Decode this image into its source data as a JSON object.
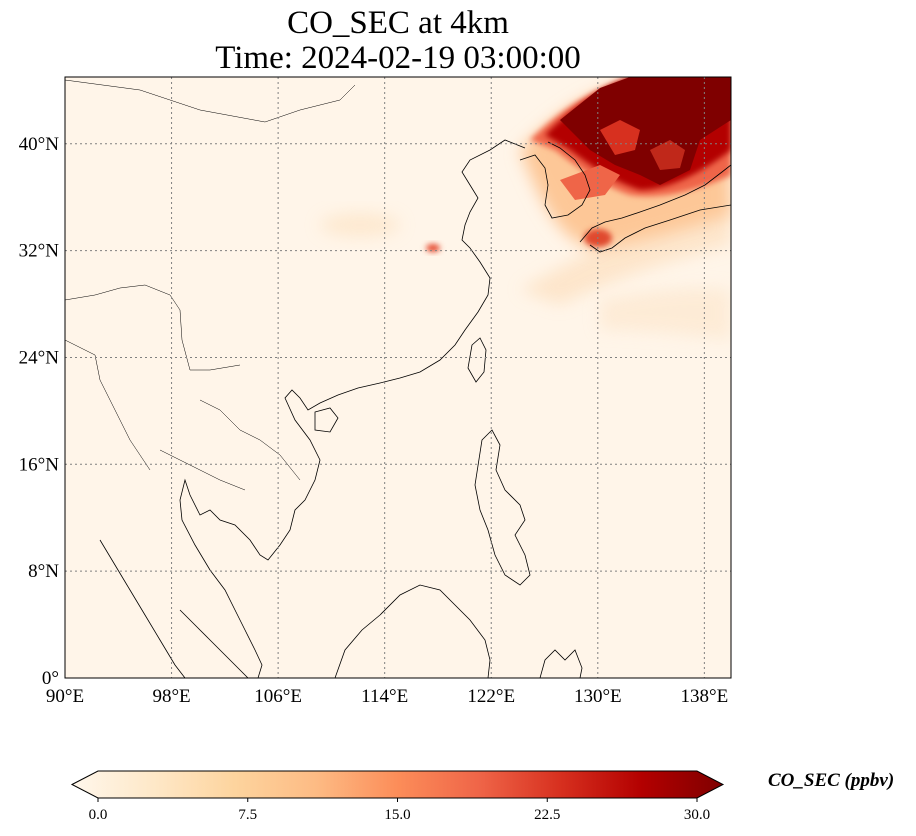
{
  "title": {
    "line1": "CO_SEC at 4km",
    "line2": "Time: 2024-02-19 03:00:00"
  },
  "map": {
    "lon_range": [
      90,
      140
    ],
    "lat_range": [
      0,
      45
    ],
    "lon_ticks": [
      90,
      98,
      106,
      114,
      122,
      130,
      138
    ],
    "lat_ticks": [
      0,
      8,
      16,
      24,
      32,
      40
    ],
    "lon_tick_labels": [
      "90°E",
      "98°E",
      "106°E",
      "114°E",
      "122°E",
      "130°E",
      "138°E"
    ],
    "lat_tick_labels": [
      "0°",
      "8°N",
      "16°N",
      "24°N",
      "32°N",
      "40°N"
    ],
    "gridlines": "dotted",
    "variable": "CO_SEC",
    "level": "4km",
    "colormap": "OrRd",
    "background_color": "#fff5e9",
    "coastline_color": "#000000"
  },
  "colorbar": {
    "label": "CO_SEC (ppbv)",
    "range": [
      0.0,
      30.0
    ],
    "ticks": [
      0.0,
      7.5,
      15.0,
      22.5,
      30.0
    ],
    "tick_labels": [
      "0.0",
      "7.5",
      "15.0",
      "22.5",
      "30.0"
    ],
    "extend": "both",
    "colors": [
      "#fff7ec",
      "#fee8c8",
      "#fdd49e",
      "#fdbb84",
      "#fc8d59",
      "#ef6548",
      "#d7301f",
      "#b30000",
      "#7f0000"
    ]
  },
  "features": [
    {
      "name": "plume-ne-asia",
      "lon_range": [
        125,
        140
      ],
      "lat_range": [
        36,
        45
      ],
      "max_value": 30
    },
    {
      "name": "hotspot-japan",
      "lon": 130,
      "lat": 33,
      "value": 18
    },
    {
      "name": "hotspot-east-china",
      "lon": 118,
      "lat": 32.3,
      "value": 14
    }
  ]
}
